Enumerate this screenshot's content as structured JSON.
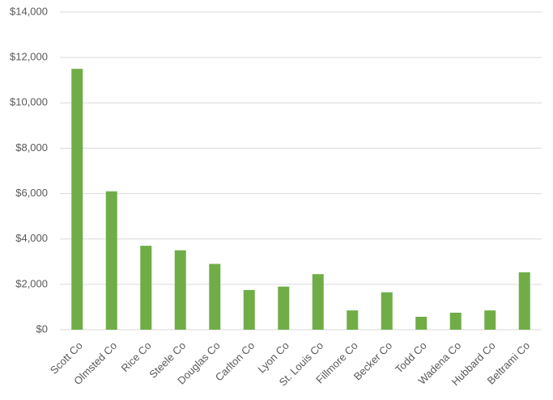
{
  "chart_data": {
    "type": "bar",
    "categories": [
      "Scott Co",
      "Olmsted Co",
      "Rice Co",
      "Steele Co",
      "Douglas Co",
      "Carlton Co",
      "Lyon Co",
      "St. Louis Co",
      "Fillmore Co",
      "Becker Co",
      "Todd Co",
      "Wadena Co",
      "Hubbard Co",
      "Beltrami Co"
    ],
    "values": [
      11500,
      6100,
      3700,
      3500,
      2900,
      1750,
      1900,
      2450,
      850,
      1650,
      570,
      750,
      850,
      2530
    ],
    "color": "#70ad47",
    "ylim": [
      0,
      14000
    ],
    "yticks": [
      {
        "value": 0,
        "label": "$0"
      },
      {
        "value": 2000,
        "label": "$2,000"
      },
      {
        "value": 4000,
        "label": "$4,000"
      },
      {
        "value": 6000,
        "label": "$6,000"
      },
      {
        "value": 8000,
        "label": "$8,000"
      },
      {
        "value": 10000,
        "label": "$10,000"
      },
      {
        "value": 12000,
        "label": "$12,000"
      },
      {
        "value": 14000,
        "label": "$14,000"
      }
    ],
    "grid": true
  }
}
